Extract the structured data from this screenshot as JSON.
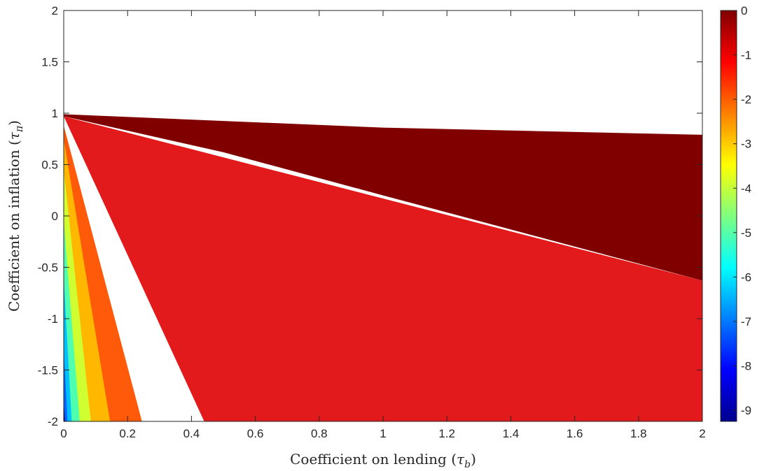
{
  "chart_data": {
    "type": "heatmap",
    "subtype": "filled-contour",
    "xlabel": "Coefficient on lending (τ_b)",
    "ylabel": "Coefficient on inflation (τ_π)",
    "xlim": [
      0,
      2
    ],
    "ylim": [
      -2,
      2
    ],
    "x_ticks": [
      "0",
      "0.2",
      "0.4",
      "0.6",
      "0.8",
      "1",
      "1.2",
      "1.4",
      "1.6",
      "1.8",
      "2"
    ],
    "y_ticks": [
      "-2",
      "-1.5",
      "-1",
      "-0.5",
      "0",
      "0.5",
      "1",
      "1.5",
      "2"
    ],
    "colorbar": {
      "colormap": "jet",
      "range": [
        -9.25,
        0
      ],
      "ticks": [
        "0",
        "-1",
        "-2",
        "-3",
        "-4",
        "-5",
        "-6",
        "-7",
        "-8",
        "-9"
      ]
    },
    "regions": [
      {
        "level": 0,
        "color": "#800000",
        "boundary": [
          [
            0.0,
            0.99
          ],
          [
            1.0,
            0.86
          ],
          [
            2.0,
            0.79
          ],
          [
            2.0,
            -0.63
          ],
          [
            1.0,
            0.2
          ],
          [
            0.5,
            0.62
          ],
          [
            0.0,
            0.97
          ]
        ]
      },
      {
        "level": -1,
        "color": "#e31a1c",
        "boundary_top_edge": [
          [
            0.0,
            0.97
          ],
          [
            2.0,
            -0.63
          ]
        ],
        "left_edge": [
          [
            0.0,
            0.97
          ],
          [
            0.44,
            -2.0
          ]
        ]
      },
      {
        "level": -1.75,
        "color": "#ff5a0a",
        "left_edge": [
          [
            0.0,
            0.88
          ],
          [
            0.245,
            -2.0
          ]
        ]
      },
      {
        "level": -2.75,
        "color": "#ffb700",
        "left_edge": [
          [
            0.0,
            0.75
          ],
          [
            0.145,
            -2.0
          ]
        ]
      },
      {
        "level": -3.75,
        "color": "#cfff30",
        "left_edge": [
          [
            0.0,
            0.45
          ],
          [
            0.085,
            -2.0
          ]
        ]
      },
      {
        "level": -4.75,
        "color": "#4effb0",
        "left_edge": [
          [
            0.0,
            -0.05
          ],
          [
            0.05,
            -2.0
          ]
        ]
      },
      {
        "level": -6.0,
        "color": "#00bfff",
        "left_edge": [
          [
            0.0,
            -0.6
          ],
          [
            0.025,
            -2.0
          ]
        ]
      },
      {
        "level": -7.5,
        "color": "#0066ff",
        "left_edge": [
          [
            0.0,
            -1.3
          ],
          [
            0.012,
            -2.0
          ]
        ]
      },
      {
        "level": -8.75,
        "color": "#00008f",
        "left_edge": [
          [
            0.0,
            -1.8
          ],
          [
            0.004,
            -2.0
          ]
        ]
      }
    ],
    "empty_region": "white (undefined) above the dark-red boundary",
    "grid": false
  }
}
